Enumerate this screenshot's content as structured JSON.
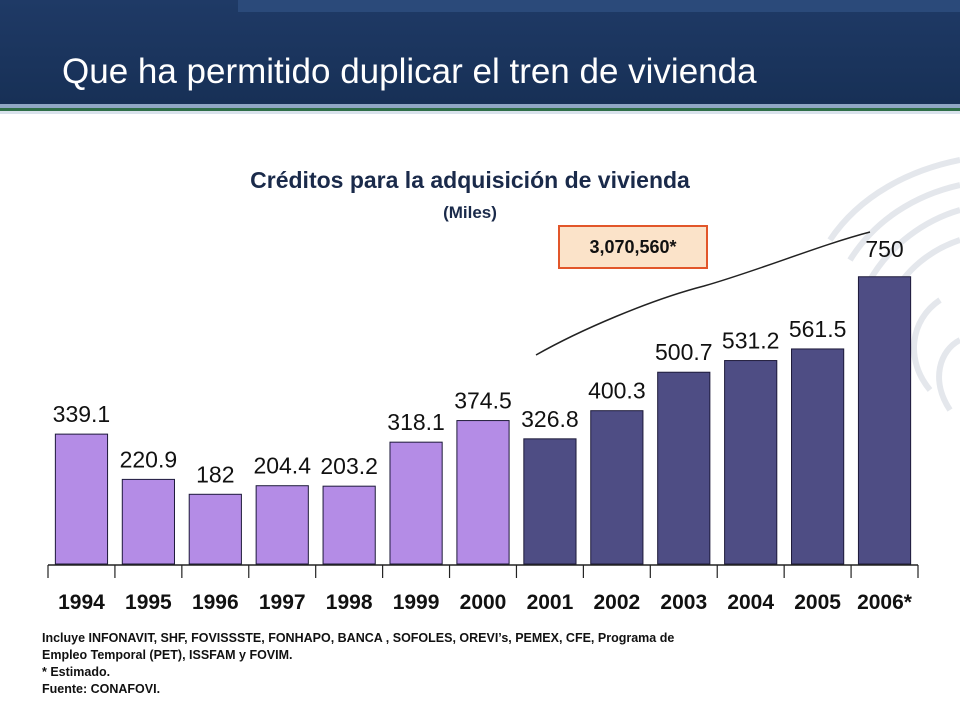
{
  "slide": {
    "title": "Que ha permitido duplicar el tren de vivienda"
  },
  "chart_data": {
    "type": "bar",
    "title": "Créditos para la adquisición de vivienda",
    "subtitle": "(Miles)",
    "categories": [
      "1994",
      "1995",
      "1996",
      "1997",
      "1998",
      "1999",
      "2000",
      "2001",
      "2002",
      "2003",
      "2004",
      "2005",
      "2006*"
    ],
    "values": [
      339.1,
      220.9,
      182,
      204.4,
      203.2,
      318.1,
      374.5,
      326.8,
      400.3,
      500.7,
      531.2,
      561.5,
      750
    ],
    "value_labels": [
      "339.1",
      "220.9",
      "182",
      "204.4",
      "203.2",
      "318.1",
      "374.5",
      "326.8",
      "400.3",
      "500.7",
      "531.2",
      "561.5",
      "750"
    ],
    "ylim": [
      0,
      800
    ],
    "grid": false,
    "legend": "none",
    "colors": {
      "early": "#b48ce6",
      "late": "#4e4d84"
    },
    "highlight_from_index": 7,
    "annotation": "3,070,560*"
  },
  "footnotes": {
    "line1": "Incluye INFONAVIT, SHF, FOVISSSTE, FONHAPO, BANCA , SOFOLES, OREVI’s, PEMEX, CFE, Programa de",
    "line2": "Empleo Temporal  (PET), ISSFAM y FOVIM.",
    "line3": "* Estimado.",
    "line4": "Fuente:  CONAFOVI."
  }
}
